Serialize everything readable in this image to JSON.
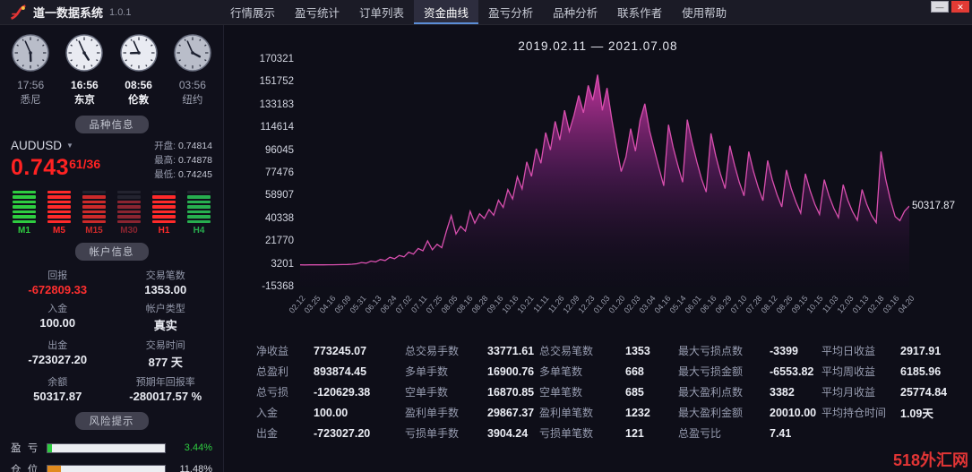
{
  "window": {
    "title": "道一数据系统",
    "version": "1.0.1"
  },
  "icons": {
    "chevron_down": "▼",
    "minimize": "—",
    "close": "✕"
  },
  "topbar": {
    "menu": [
      {
        "label": "行情展示",
        "active": false
      },
      {
        "label": "盈亏统计",
        "active": false
      },
      {
        "label": "订单列表",
        "active": false
      },
      {
        "label": "资金曲线",
        "active": true
      },
      {
        "label": "盈亏分析",
        "active": false
      },
      {
        "label": "品种分析",
        "active": false
      },
      {
        "label": "联系作者",
        "active": false
      },
      {
        "label": "使用帮助",
        "active": false
      }
    ]
  },
  "clocks": [
    {
      "city": "悉尼",
      "time": "17:56",
      "highlight": false
    },
    {
      "city": "东京",
      "time": "16:56",
      "highlight": true
    },
    {
      "city": "伦敦",
      "time": "08:56",
      "highlight": true
    },
    {
      "city": "纽约",
      "time": "03:56",
      "highlight": false
    }
  ],
  "symbol_panel": {
    "header": "品种信息",
    "symbol": "AUDUSD",
    "price_main": "0.743",
    "price_sup": "61",
    "price_suffix": "/36",
    "quotes": [
      {
        "label": "开盘:",
        "value": "0.74814"
      },
      {
        "label": "最高:",
        "value": "0.74878"
      },
      {
        "label": "最低:",
        "value": "0.74245"
      }
    ],
    "timeframes": [
      {
        "label": "M1",
        "color": "#2ecc40",
        "lit": 7
      },
      {
        "label": "M5",
        "color": "#ff2a2a",
        "lit": 7
      },
      {
        "label": "M15",
        "color": "#cc2a2a",
        "lit": 6
      },
      {
        "label": "M30",
        "color": "#8a2430",
        "lit": 5
      },
      {
        "label": "H1",
        "color": "#ff2a2a",
        "lit": 6
      },
      {
        "label": "H4",
        "color": "#27ae4f",
        "lit": 6
      }
    ]
  },
  "account_panel": {
    "header": "帐户信息",
    "items": [
      {
        "label": "回报",
        "value": "-672809.33",
        "color": "#ff2f2f"
      },
      {
        "label": "交易笔数",
        "value": "1353.00",
        "color": ""
      },
      {
        "label": "入金",
        "value": "100.00",
        "color": ""
      },
      {
        "label": "帐户类型",
        "value": "真实",
        "color": ""
      },
      {
        "label": "出金",
        "value": "-723027.20",
        "color": ""
      },
      {
        "label": "交易时间",
        "value": "877 天",
        "color": ""
      },
      {
        "label": "余额",
        "value": "50317.87",
        "color": ""
      },
      {
        "label": "预期年回报率",
        "value": "-280017.57 %",
        "color": ""
      }
    ]
  },
  "risk_panel": {
    "header": "风险提示",
    "items": [
      {
        "label": "盈 亏",
        "percent": 3.44,
        "display": "3.44%",
        "bar_color": "#2ecc40",
        "text_color": "#2ecc40"
      },
      {
        "label": "仓 位",
        "percent": 11.48,
        "display": "11.48%",
        "bar_color": "#e08a1e",
        "text_color": "#d8dae2"
      }
    ]
  },
  "chart_data": {
    "type": "area",
    "title": "2019.02.11 — 2021.07.08",
    "ylabel": "",
    "xlabel": "",
    "grid": false,
    "legend": false,
    "line_color": "#d84fae",
    "ylim": [
      -15368,
      170321
    ],
    "y_ticks": [
      170321,
      151752,
      133183,
      114614,
      96045,
      77476,
      58907,
      40338,
      21770,
      3201,
      -15368
    ],
    "x_labels": [
      "02.12",
      "03.25",
      "04.16",
      "05.09",
      "05.31",
      "06.13",
      "06.24",
      "07.02",
      "07.11",
      "07.25",
      "08.05",
      "08.16",
      "08.28",
      "09.16",
      "10.16",
      "10.21",
      "11.11",
      "11.26",
      "12.09",
      "12.23",
      "01.03",
      "01.20",
      "02.03",
      "03.04",
      "04.16",
      "05.14",
      "06.01",
      "06.16",
      "06.29",
      "07.10",
      "07.28",
      "08.12",
      "08.26",
      "09.15",
      "10.15",
      "11.03",
      "12.03",
      "01.13",
      "02.18",
      "03.16",
      "04.20"
    ],
    "end_label": "50317.87",
    "end_value": 50317.87,
    "values": [
      2400,
      2350,
      2420,
      2380,
      2450,
      2400,
      2500,
      2460,
      2550,
      2600,
      2700,
      2900,
      3300,
      4300,
      3800,
      5500,
      4800,
      6800,
      5900,
      8600,
      7400,
      10100,
      8900,
      12800,
      11200,
      15800,
      13900,
      21900,
      14700,
      19200,
      16400,
      30200,
      42600,
      27600,
      33800,
      29900,
      46100,
      36400,
      44100,
      40300,
      47600,
      42900,
      55200,
      49300,
      63800,
      56200,
      74300,
      64400,
      86500,
      74600,
      97200,
      85300,
      110400,
      96200,
      119500,
      104300,
      128600,
      111400,
      124400,
      140700,
      126500,
      148900,
      136600,
      157600,
      128400,
      146800,
      121300,
      98700,
      78600,
      90400,
      113600,
      95200,
      120300,
      133900,
      111800,
      96600,
      81400,
      66900,
      116700,
      98400,
      83500,
      69800,
      120900,
      102600,
      86700,
      72500,
      61800,
      109700,
      91500,
      76800,
      64600,
      99600,
      83700,
      69900,
      58700,
      94800,
      78900,
      65700,
      54800,
      87600,
      71800,
      59600,
      49700,
      79800,
      64700,
      53700,
      44600,
      76800,
      62900,
      51800,
      43600,
      71900,
      58700,
      48600,
      40900,
      67800,
      54900,
      45700,
      38800,
      63900,
      51700,
      42800,
      36900,
      94900,
      72400,
      55400,
      41800,
      38500,
      46200,
      50318
    ]
  },
  "stats": {
    "columns": [
      [
        {
          "label": "净收益",
          "value": "773245.07"
        },
        {
          "label": "总盈利",
          "value": "893874.45"
        },
        {
          "label": "总亏损",
          "value": "-120629.38"
        },
        {
          "label": "入金",
          "value": "100.00"
        },
        {
          "label": "出金",
          "value": "-723027.20"
        }
      ],
      [
        {
          "label": "总交易手数",
          "value": "33771.61"
        },
        {
          "label": "多单手数",
          "value": "16900.76"
        },
        {
          "label": "空单手数",
          "value": "16870.85"
        },
        {
          "label": "盈利单手数",
          "value": "29867.37"
        },
        {
          "label": "亏损单手数",
          "value": "3904.24"
        }
      ],
      [
        {
          "label": "总交易笔数",
          "value": "1353"
        },
        {
          "label": "多单笔数",
          "value": "668"
        },
        {
          "label": "空单笔数",
          "value": "685"
        },
        {
          "label": "盈利单笔数",
          "value": "1232"
        },
        {
          "label": "亏损单笔数",
          "value": "121"
        }
      ],
      [
        {
          "label": "最大亏损点数",
          "value": "-3399"
        },
        {
          "label": "最大亏损金额",
          "value": "-6553.82"
        },
        {
          "label": "最大盈利点数",
          "value": "3382"
        },
        {
          "label": "最大盈利金额",
          "value": "20010.00"
        },
        {
          "label": "总盈亏比",
          "value": "7.41"
        }
      ],
      [
        {
          "label": "平均日收益",
          "value": "2917.91"
        },
        {
          "label": "平均周收益",
          "value": "6185.96"
        },
        {
          "label": "平均月收益",
          "value": "25774.84"
        },
        {
          "label": "平均持仓时间",
          "value": "1.09天"
        }
      ]
    ]
  },
  "watermark": "518外汇网"
}
